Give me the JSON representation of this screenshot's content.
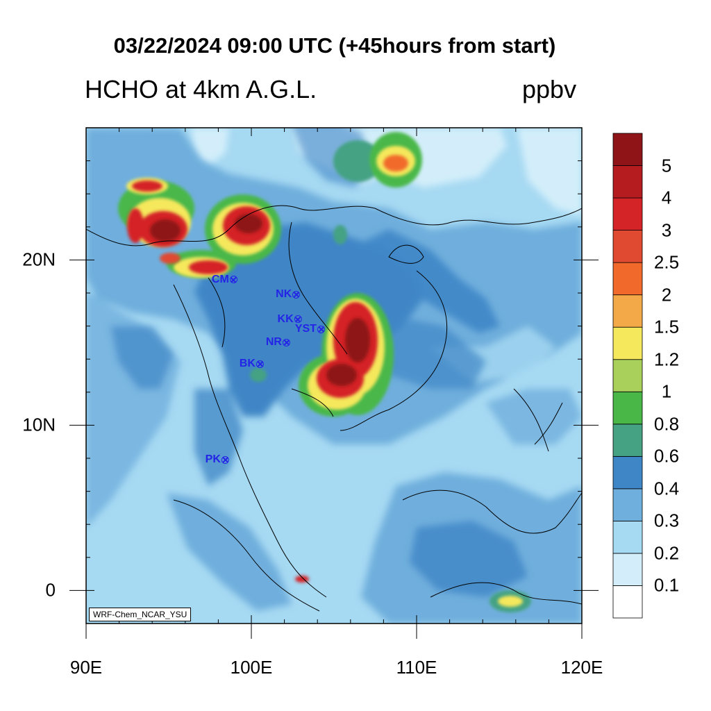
{
  "title": "03/22/2024 09:00 UTC (+45hours from start)",
  "subtitle": "HCHO at 4km A.G.L.",
  "units": "ppbv",
  "credit": "WRF-Chem_NCAR_YSU",
  "colors": {
    "frame": "#000000",
    "coast": "#000000",
    "station": "#2424e6"
  },
  "axes": {
    "x_ticks": [
      {
        "value": 90,
        "label": "90E"
      },
      {
        "value": 100,
        "label": "100E"
      },
      {
        "value": 110,
        "label": "110E"
      },
      {
        "value": 120,
        "label": "120E"
      }
    ],
    "y_ticks": [
      {
        "value": 20,
        "label": "20N"
      },
      {
        "value": 10,
        "label": "10N"
      },
      {
        "value": 0,
        "label": "0"
      }
    ],
    "lon_range": [
      90,
      120
    ],
    "lat_range": [
      -2,
      28
    ]
  },
  "colorbar": {
    "levels": [
      {
        "label": "0.1",
        "color": "#ffffff"
      },
      {
        "label": "0.2",
        "color": "#d3eefa"
      },
      {
        "label": "0.3",
        "color": "#a6d9f2"
      },
      {
        "label": "0.4",
        "color": "#6fafdd"
      },
      {
        "label": "0.6",
        "color": "#3f86c6"
      },
      {
        "label": "0.8",
        "color": "#45a283"
      },
      {
        "label": "1",
        "color": "#48b748"
      },
      {
        "label": "1.2",
        "color": "#a9d05a"
      },
      {
        "label": "1.5",
        "color": "#f5e85c"
      },
      {
        "label": "2",
        "color": "#f4a948"
      },
      {
        "label": "2.5",
        "color": "#f16a2b"
      },
      {
        "label": "3",
        "color": "#e04a30"
      },
      {
        "label": "4",
        "color": "#d42428"
      },
      {
        "label": "5",
        "color": "#b51c20"
      },
      {
        "label": "",
        "color": "#8e1418"
      }
    ]
  },
  "stations": [
    {
      "code": "CM",
      "lon": 98.9,
      "lat": 18.8
    },
    {
      "code": "NK",
      "lon": 102.7,
      "lat": 17.9
    },
    {
      "code": "KK",
      "lon": 102.8,
      "lat": 16.4
    },
    {
      "code": "YST",
      "lon": 104.2,
      "lat": 15.8
    },
    {
      "code": "NR",
      "lon": 102.1,
      "lat": 15.0
    },
    {
      "code": "BK",
      "lon": 100.5,
      "lat": 13.7
    },
    {
      "code": "PK",
      "lon": 98.4,
      "lat": 7.9
    }
  ]
}
